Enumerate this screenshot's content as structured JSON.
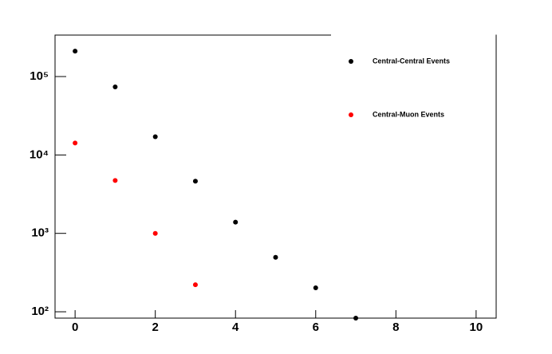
{
  "chart_data": {
    "type": "scatter",
    "log_y": true,
    "legend": "top right",
    "xlim": [
      -0.5,
      10.5
    ],
    "xticks": [
      0,
      2,
      4,
      6,
      8,
      10
    ],
    "ylim": [
      83,
      338000
    ],
    "yticks": [
      {
        "value": 100,
        "label": "10²"
      },
      {
        "value": 1000,
        "label": "10³"
      },
      {
        "value": 10000,
        "label": "10⁴"
      },
      {
        "value": 100000,
        "label": "10⁵"
      }
    ],
    "series": [
      {
        "name": "Central-Central Events",
        "color": "#000000",
        "x": [
          0,
          1,
          2,
          3,
          4,
          5,
          6,
          7
        ],
        "values": [
          211000,
          73800,
          17100,
          4630,
          1390,
          495,
          202,
          83
        ]
      },
      {
        "name": "Central-Muon Events",
        "color": "#ff0000",
        "x": [
          0,
          1,
          2,
          3
        ],
        "values": [
          14200,
          4730,
          1000,
          221
        ]
      }
    ]
  }
}
